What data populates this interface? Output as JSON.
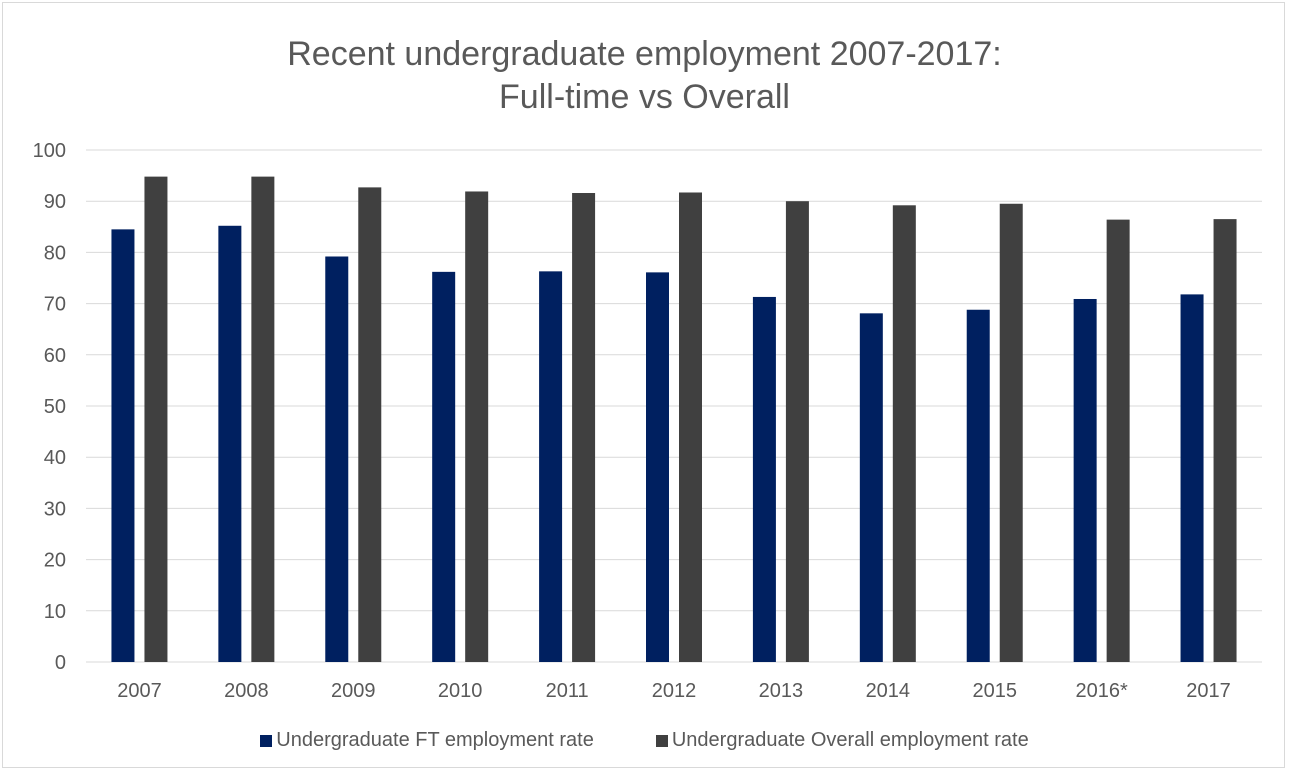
{
  "chart_data": {
    "type": "bar",
    "title": [
      "Recent undergraduate employment 2007-2017:",
      "Full-time vs Overall"
    ],
    "categories": [
      "2007",
      "2008",
      "2009",
      "2010",
      "2011",
      "2012",
      "2013",
      "2014",
      "2015",
      "2016*",
      "2017"
    ],
    "series": [
      {
        "name": "Undergraduate FT employment rate",
        "color": "#002060",
        "values": [
          84.5,
          85.2,
          79.2,
          76.2,
          76.3,
          76.1,
          71.3,
          68.1,
          68.8,
          70.9,
          71.8
        ]
      },
      {
        "name": "Undergraduate Overall employment rate",
        "color": "#404040",
        "values": [
          94.8,
          94.8,
          92.7,
          91.9,
          91.6,
          91.7,
          90.0,
          89.2,
          89.5,
          86.4,
          86.5
        ]
      }
    ],
    "ylim": [
      0,
      100
    ],
    "yticks": [
      0,
      10,
      20,
      30,
      40,
      50,
      60,
      70,
      80,
      90,
      100
    ],
    "grid": true,
    "legend_position": "bottom"
  }
}
